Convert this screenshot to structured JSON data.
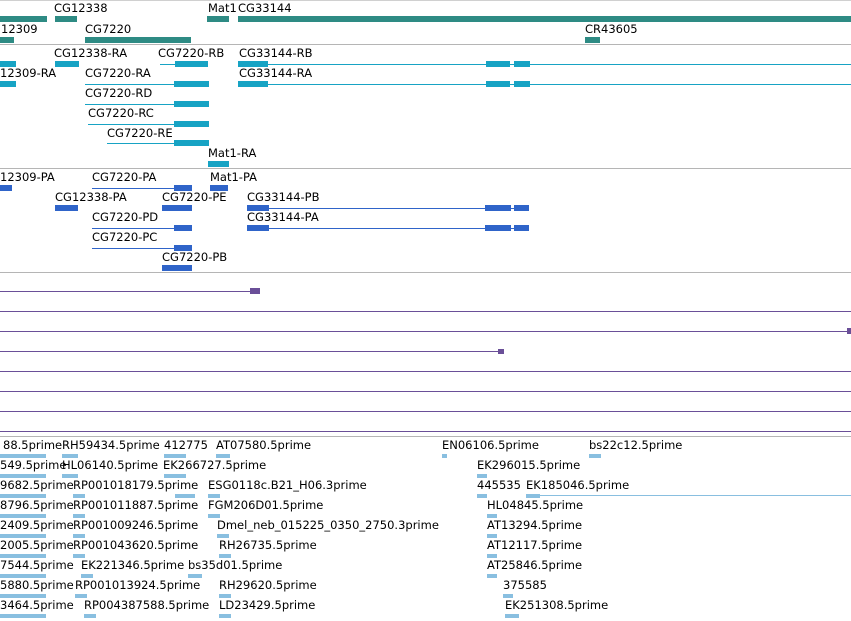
{
  "colors": {
    "gene": "#2e8b84",
    "transcript": "#17a3c4",
    "protein": "#2f64c9",
    "track4": "#6a4f98",
    "est": "#89bfe0",
    "divider": "#b5b5b5"
  },
  "gene_track": {
    "labels": [
      "CG12338",
      "Mat1",
      "CG33144",
      "12309",
      "CG7220",
      "CR43605"
    ]
  },
  "transcript_track": {
    "labels": [
      "CG12338-RA",
      "CG7220-RB",
      "CG33144-RB",
      "12309-RA",
      "CG7220-RA",
      "CG33144-RA",
      "CG7220-RD",
      "CG7220-RC",
      "CG7220-RE",
      "Mat1-RA"
    ]
  },
  "protein_track": {
    "labels": [
      "12309-PA",
      "CG7220-PA",
      "Mat1-PA",
      "CG12338-PA",
      "CG7220-PE",
      "CG33144-PB",
      "CG7220-PD",
      "CG33144-PA",
      "CG7220-PC",
      "CG7220-PB"
    ]
  },
  "est_track": {
    "labels": [
      "88.5prime",
      "RH59434.5prime",
      "412775",
      "AT07580.5prime",
      "EN06106.5prime",
      "bs22c12.5prime",
      "549.5prime",
      "HL06140.5prime",
      "EK266727.5prime",
      "EK296015.5prime",
      "9682.5prime",
      "RP001018179.5prime",
      "ESG0118c.B21_H06.3prime",
      "445535",
      "EK185046.5prime",
      "8796.5prime",
      "RP001011887.5prime",
      "FGM206D01.5prime",
      "HL04845.5prime",
      "2409.5prime",
      "RP001009246.5prime",
      "Dmel_neb_015225_0350_2750.3prime",
      "AT13294.5prime",
      "2005.5prime",
      "RP001043620.5prime",
      "RH26735.5prime",
      "AT12117.5prime",
      "7544.5prime",
      "EK221346.5prime",
      "bs35d01.5prime",
      "AT25846.5prime",
      "5880.5prime",
      "RP001013924.5prime",
      "RH29620.5prime",
      "375585",
      "3464.5prime",
      "RP004387588.5prime",
      "LD23429.5prime",
      "EK251308.5prime"
    ]
  }
}
